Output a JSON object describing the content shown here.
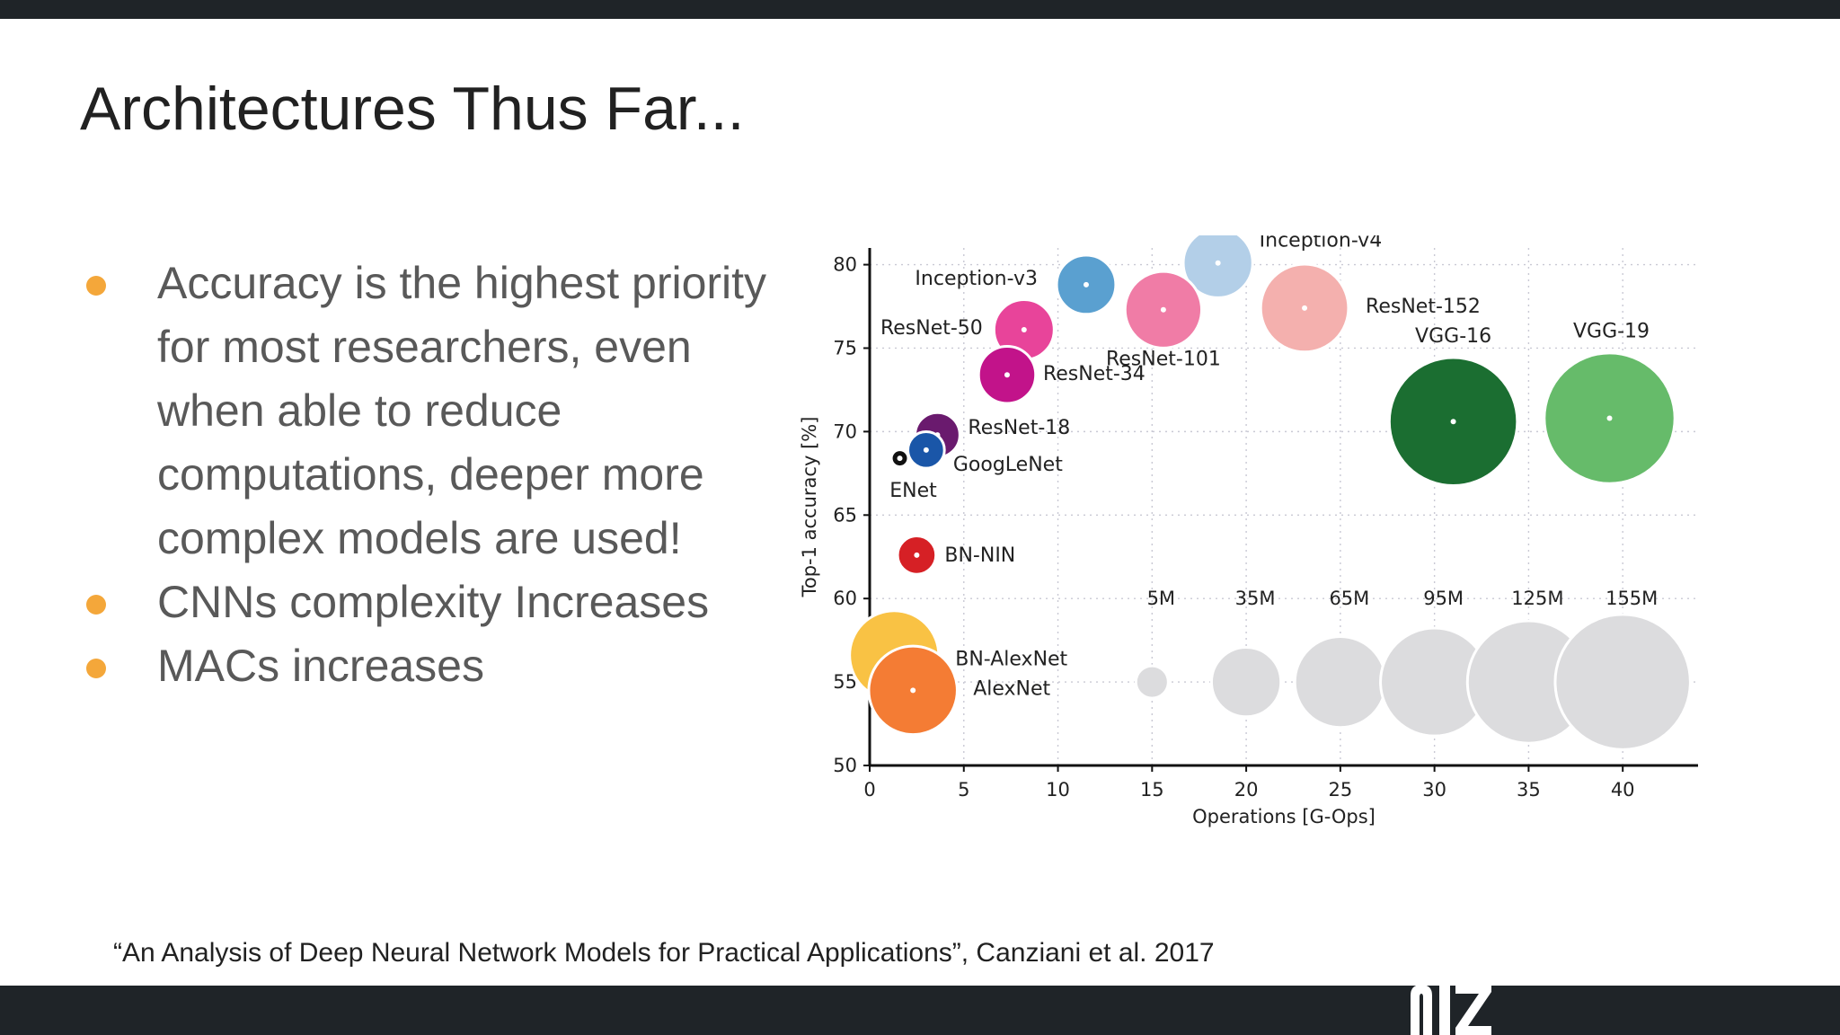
{
  "slide": {
    "title": "Architectures Thus Far...",
    "bullets": [
      "Accuracy is the highest priority for most researchers, even when able to reduce computations, deeper more complex models are used!",
      "CNNs complexity Increases",
      "MACs increases"
    ],
    "citation": "“An Analysis of Deep Neural Network Models for Practical Applications”, Canziani et al. 2017",
    "bullet_color": "#f4a73a",
    "bar_color": "#1f2428"
  },
  "chart_data": {
    "type": "scatter",
    "title": "",
    "xlabel": "Operations [G-Ops]",
    "ylabel": "Top-1 accuracy [%]",
    "xlim": [
      0,
      44
    ],
    "ylim": [
      50,
      81
    ],
    "xticks": [
      0,
      5,
      10,
      15,
      20,
      25,
      30,
      35,
      40
    ],
    "yticks": [
      50,
      55,
      60,
      65,
      70,
      75,
      80
    ],
    "grid": true,
    "bubble_size_meaning": "parameters",
    "points": [
      {
        "name": "Inception-v4",
        "x": 18.5,
        "y": 80.1,
        "params": 35,
        "color": "#b3cfe8"
      },
      {
        "name": "Inception-v3",
        "x": 11.5,
        "y": 78.8,
        "params": 24,
        "color": "#5aa0d0"
      },
      {
        "name": "ResNet-152",
        "x": 23.1,
        "y": 77.4,
        "params": 60,
        "color": "#f4b0ae"
      },
      {
        "name": "ResNet-101",
        "x": 15.6,
        "y": 77.3,
        "params": 44,
        "color": "#f07ca6"
      },
      {
        "name": "ResNet-50",
        "x": 8.2,
        "y": 76.1,
        "params": 25,
        "color": "#e8449a"
      },
      {
        "name": "ResNet-34",
        "x": 7.3,
        "y": 73.4,
        "params": 22,
        "color": "#c2138a"
      },
      {
        "name": "ResNet-18",
        "x": 3.6,
        "y": 69.8,
        "params": 12,
        "color": "#6a1a6e"
      },
      {
        "name": "GoogLeNet",
        "x": 3.0,
        "y": 68.9,
        "params": 7,
        "color": "#1a56a8"
      },
      {
        "name": "ENet",
        "x": 1.6,
        "y": 68.4,
        "params": 0.5,
        "color": "#111111"
      },
      {
        "name": "BN-NIN",
        "x": 2.5,
        "y": 62.6,
        "params": 8,
        "color": "#d62025"
      },
      {
        "name": "VGG-16",
        "x": 31.0,
        "y": 70.6,
        "params": 138,
        "color": "#1b6e31"
      },
      {
        "name": "VGG-19",
        "x": 39.3,
        "y": 70.8,
        "params": 144,
        "color": "#66bb6a"
      },
      {
        "name": "BN-AlexNet",
        "x": 1.3,
        "y": 56.6,
        "params": 62,
        "color": "#f9c244"
      },
      {
        "name": "AlexNet",
        "x": 2.3,
        "y": 54.5,
        "params": 61,
        "color": "#f47c34"
      }
    ],
    "size_legend": [
      {
        "label": "5M",
        "x": 15,
        "y": 55,
        "params": 5
      },
      {
        "label": "35M",
        "x": 20,
        "y": 55,
        "params": 35
      },
      {
        "label": "65M",
        "x": 25,
        "y": 55,
        "params": 65
      },
      {
        "label": "95M",
        "x": 30,
        "y": 55,
        "params": 95
      },
      {
        "label": "125M",
        "x": 35,
        "y": 55,
        "params": 125
      },
      {
        "label": "155M",
        "x": 40,
        "y": 55,
        "params": 155
      }
    ],
    "size_legend_color": "#dcdcde"
  }
}
